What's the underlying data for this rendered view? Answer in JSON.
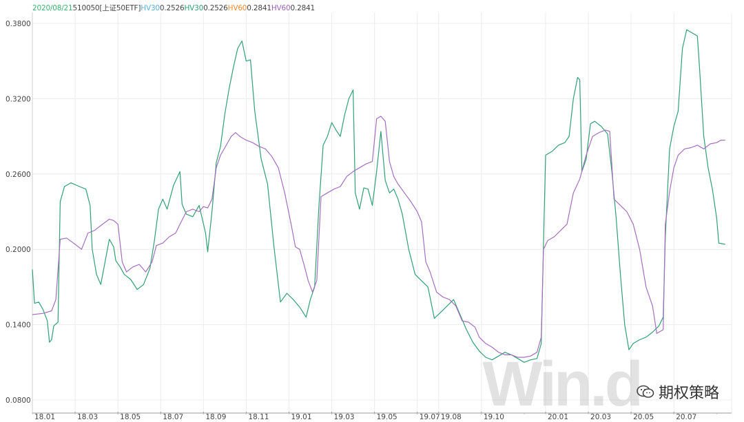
{
  "legend": {
    "date": "2020/08/21",
    "code": "510050",
    "name": "[上证50ETF]",
    "items": [
      {
        "label": "HV30",
        "value": "0.2526",
        "color": "#5bb0e0"
      },
      {
        "label": "HV30",
        "value": "0.2526",
        "color": "#2fa074"
      },
      {
        "label": "HV60",
        "value": "0.2841",
        "color": "#f08a30"
      },
      {
        "label": "HV60",
        "value": "0.2841",
        "color": "#9a62b8"
      }
    ],
    "date_color": "#3cb371",
    "text_color": "#444444"
  },
  "watermark": "Win.d",
  "wechat_label": "期权策略",
  "chart_data": {
    "type": "line",
    "ylim": [
      0.08,
      0.38
    ],
    "yticks": [
      "0.0800",
      "0.1400",
      "0.2000",
      "0.2600",
      "0.3200",
      "0.3800"
    ],
    "ytick_values": [
      0.08,
      0.14,
      0.2,
      0.26,
      0.32,
      0.38
    ],
    "xlim": [
      0,
      32.7
    ],
    "xticks": [
      {
        "label": "18.01",
        "x": 0
      },
      {
        "label": "18.03",
        "x": 2
      },
      {
        "label": "18.05",
        "x": 4
      },
      {
        "label": "18.07",
        "x": 6
      },
      {
        "label": "18.09",
        "x": 8
      },
      {
        "label": "18.11",
        "x": 10
      },
      {
        "label": "19.01",
        "x": 12
      },
      {
        "label": "19.03",
        "x": 14
      },
      {
        "label": "19.05",
        "x": 16
      },
      {
        "label": "19.07",
        "x": 18
      },
      {
        "label": "19.08",
        "x": 19
      },
      {
        "label": "19.10",
        "x": 21
      },
      {
        "label": "20.01",
        "x": 24
      },
      {
        "label": "20.03",
        "x": 26
      },
      {
        "label": "20.05",
        "x": 28
      },
      {
        "label": "20.07",
        "x": 30
      }
    ],
    "grid": true,
    "series": [
      {
        "name": "HV30",
        "color": "#2fa074",
        "points": [
          [
            0.0,
            0.184
          ],
          [
            0.1,
            0.157
          ],
          [
            0.3,
            0.158
          ],
          [
            0.5,
            0.152
          ],
          [
            0.7,
            0.143
          ],
          [
            0.8,
            0.126
          ],
          [
            0.9,
            0.128
          ],
          [
            1.0,
            0.139
          ],
          [
            1.2,
            0.142
          ],
          [
            1.3,
            0.238
          ],
          [
            1.5,
            0.25
          ],
          [
            1.8,
            0.253
          ],
          [
            2.2,
            0.25
          ],
          [
            2.5,
            0.248
          ],
          [
            2.7,
            0.235
          ],
          [
            2.8,
            0.2
          ],
          [
            3.0,
            0.18
          ],
          [
            3.2,
            0.172
          ],
          [
            3.4,
            0.19
          ],
          [
            3.6,
            0.208
          ],
          [
            3.8,
            0.202
          ],
          [
            3.9,
            0.191
          ],
          [
            4.1,
            0.186
          ],
          [
            4.3,
            0.18
          ],
          [
            4.6,
            0.176
          ],
          [
            4.9,
            0.168
          ],
          [
            5.2,
            0.172
          ],
          [
            5.5,
            0.185
          ],
          [
            5.7,
            0.206
          ],
          [
            5.9,
            0.232
          ],
          [
            6.1,
            0.24
          ],
          [
            6.3,
            0.232
          ],
          [
            6.6,
            0.251
          ],
          [
            6.9,
            0.262
          ],
          [
            7.0,
            0.236
          ],
          [
            7.2,
            0.228
          ],
          [
            7.5,
            0.226
          ],
          [
            7.8,
            0.235
          ],
          [
            8.1,
            0.213
          ],
          [
            8.2,
            0.198
          ],
          [
            8.4,
            0.23
          ],
          [
            8.6,
            0.269
          ],
          [
            8.8,
            0.282
          ],
          [
            9.0,
            0.308
          ],
          [
            9.2,
            0.328
          ],
          [
            9.4,
            0.345
          ],
          [
            9.6,
            0.36
          ],
          [
            9.8,
            0.366
          ],
          [
            10.0,
            0.35
          ],
          [
            10.2,
            0.351
          ],
          [
            10.4,
            0.31
          ],
          [
            10.7,
            0.272
          ],
          [
            11.0,
            0.252
          ],
          [
            11.3,
            0.202
          ],
          [
            11.6,
            0.158
          ],
          [
            11.9,
            0.165
          ],
          [
            12.2,
            0.16
          ],
          [
            12.5,
            0.154
          ],
          [
            12.8,
            0.146
          ],
          [
            13.0,
            0.16
          ],
          [
            13.2,
            0.17
          ],
          [
            13.4,
            0.234
          ],
          [
            13.6,
            0.283
          ],
          [
            13.8,
            0.29
          ],
          [
            14.0,
            0.301
          ],
          [
            14.2,
            0.295
          ],
          [
            14.4,
            0.29
          ],
          [
            14.6,
            0.307
          ],
          [
            14.8,
            0.32
          ],
          [
            15.0,
            0.327
          ],
          [
            15.1,
            0.245
          ],
          [
            15.3,
            0.232
          ],
          [
            15.5,
            0.249
          ],
          [
            15.7,
            0.248
          ],
          [
            15.9,
            0.235
          ],
          [
            16.1,
            0.262
          ],
          [
            16.3,
            0.294
          ],
          [
            16.5,
            0.255
          ],
          [
            16.7,
            0.245
          ],
          [
            16.9,
            0.248
          ],
          [
            17.1,
            0.24
          ],
          [
            17.3,
            0.228
          ],
          [
            17.6,
            0.2
          ],
          [
            17.9,
            0.18
          ],
          [
            18.2,
            0.175
          ],
          [
            18.5,
            0.17
          ],
          [
            18.8,
            0.145
          ],
          [
            19.1,
            0.15
          ],
          [
            19.4,
            0.155
          ],
          [
            19.7,
            0.16
          ],
          [
            20.0,
            0.148
          ],
          [
            20.3,
            0.136
          ],
          [
            20.6,
            0.126
          ],
          [
            20.9,
            0.119
          ],
          [
            21.2,
            0.114
          ],
          [
            21.5,
            0.112
          ],
          [
            21.8,
            0.115
          ],
          [
            22.1,
            0.118
          ],
          [
            22.4,
            0.116
          ],
          [
            22.7,
            0.113
          ],
          [
            23.0,
            0.11
          ],
          [
            23.3,
            0.112
          ],
          [
            23.6,
            0.113
          ],
          [
            23.8,
            0.125
          ],
          [
            23.9,
            0.203
          ],
          [
            24.0,
            0.275
          ],
          [
            24.3,
            0.278
          ],
          [
            24.6,
            0.283
          ],
          [
            24.9,
            0.285
          ],
          [
            25.1,
            0.29
          ],
          [
            25.3,
            0.32
          ],
          [
            25.5,
            0.337
          ],
          [
            25.6,
            0.335
          ],
          [
            25.7,
            0.262
          ],
          [
            25.9,
            0.272
          ],
          [
            26.1,
            0.3
          ],
          [
            26.3,
            0.302
          ],
          [
            26.6,
            0.298
          ],
          [
            26.9,
            0.292
          ],
          [
            27.1,
            0.262
          ],
          [
            27.3,
            0.225
          ],
          [
            27.5,
            0.18
          ],
          [
            27.7,
            0.14
          ],
          [
            27.9,
            0.12
          ],
          [
            28.1,
            0.125
          ],
          [
            28.4,
            0.128
          ],
          [
            28.7,
            0.13
          ],
          [
            29.0,
            0.134
          ],
          [
            29.3,
            0.139
          ],
          [
            29.5,
            0.146
          ],
          [
            29.6,
            0.21
          ],
          [
            29.8,
            0.28
          ],
          [
            30.0,
            0.298
          ],
          [
            30.2,
            0.31
          ],
          [
            30.4,
            0.36
          ],
          [
            30.6,
            0.375
          ],
          [
            30.9,
            0.372
          ],
          [
            31.1,
            0.37
          ],
          [
            31.2,
            0.345
          ],
          [
            31.4,
            0.29
          ],
          [
            31.6,
            0.265
          ],
          [
            31.8,
            0.248
          ],
          [
            32.0,
            0.225
          ],
          [
            32.1,
            0.205
          ],
          [
            32.4,
            0.204
          ]
        ]
      },
      {
        "name": "HV60",
        "color": "#a36fbb",
        "points": [
          [
            0.0,
            0.148
          ],
          [
            0.5,
            0.149
          ],
          [
            0.9,
            0.151
          ],
          [
            1.1,
            0.16
          ],
          [
            1.3,
            0.208
          ],
          [
            1.6,
            0.209
          ],
          [
            2.0,
            0.204
          ],
          [
            2.3,
            0.2
          ],
          [
            2.6,
            0.213
          ],
          [
            2.9,
            0.215
          ],
          [
            3.2,
            0.219
          ],
          [
            3.6,
            0.224
          ],
          [
            3.8,
            0.223
          ],
          [
            4.0,
            0.22
          ],
          [
            4.2,
            0.19
          ],
          [
            4.4,
            0.182
          ],
          [
            4.7,
            0.186
          ],
          [
            5.0,
            0.188
          ],
          [
            5.3,
            0.182
          ],
          [
            5.6,
            0.19
          ],
          [
            5.8,
            0.203
          ],
          [
            6.1,
            0.205
          ],
          [
            6.4,
            0.21
          ],
          [
            6.7,
            0.213
          ],
          [
            6.9,
            0.22
          ],
          [
            7.2,
            0.23
          ],
          [
            7.5,
            0.232
          ],
          [
            7.8,
            0.23
          ],
          [
            8.0,
            0.234
          ],
          [
            8.2,
            0.233
          ],
          [
            8.4,
            0.24
          ],
          [
            8.6,
            0.265
          ],
          [
            8.8,
            0.275
          ],
          [
            9.0,
            0.281
          ],
          [
            9.3,
            0.29
          ],
          [
            9.5,
            0.293
          ],
          [
            9.7,
            0.29
          ],
          [
            10.0,
            0.287
          ],
          [
            10.3,
            0.285
          ],
          [
            10.6,
            0.282
          ],
          [
            10.9,
            0.28
          ],
          [
            11.2,
            0.274
          ],
          [
            11.5,
            0.265
          ],
          [
            11.8,
            0.245
          ],
          [
            12.1,
            0.22
          ],
          [
            12.3,
            0.202
          ],
          [
            12.5,
            0.2
          ],
          [
            12.7,
            0.188
          ],
          [
            12.9,
            0.175
          ],
          [
            13.1,
            0.166
          ],
          [
            13.3,
            0.175
          ],
          [
            13.5,
            0.242
          ],
          [
            13.8,
            0.245
          ],
          [
            14.1,
            0.248
          ],
          [
            14.4,
            0.25
          ],
          [
            14.7,
            0.258
          ],
          [
            15.0,
            0.262
          ],
          [
            15.3,
            0.265
          ],
          [
            15.6,
            0.268
          ],
          [
            15.9,
            0.27
          ],
          [
            16.1,
            0.304
          ],
          [
            16.3,
            0.306
          ],
          [
            16.5,
            0.302
          ],
          [
            16.7,
            0.27
          ],
          [
            16.9,
            0.258
          ],
          [
            17.1,
            0.252
          ],
          [
            17.4,
            0.245
          ],
          [
            17.7,
            0.238
          ],
          [
            18.0,
            0.23
          ],
          [
            18.2,
            0.222
          ],
          [
            18.4,
            0.19
          ],
          [
            18.6,
            0.182
          ],
          [
            18.9,
            0.166
          ],
          [
            19.2,
            0.162
          ],
          [
            19.5,
            0.16
          ],
          [
            19.8,
            0.155
          ],
          [
            20.1,
            0.143
          ],
          [
            20.4,
            0.142
          ],
          [
            20.7,
            0.138
          ],
          [
            20.9,
            0.13
          ],
          [
            21.2,
            0.125
          ],
          [
            21.5,
            0.122
          ],
          [
            21.8,
            0.118
          ],
          [
            22.1,
            0.116
          ],
          [
            22.4,
            0.116
          ],
          [
            22.7,
            0.114
          ],
          [
            23.0,
            0.114
          ],
          [
            23.3,
            0.115
          ],
          [
            23.6,
            0.118
          ],
          [
            23.8,
            0.13
          ],
          [
            23.9,
            0.2
          ],
          [
            24.1,
            0.207
          ],
          [
            24.4,
            0.21
          ],
          [
            24.7,
            0.215
          ],
          [
            25.0,
            0.22
          ],
          [
            25.3,
            0.245
          ],
          [
            25.6,
            0.256
          ],
          [
            25.9,
            0.275
          ],
          [
            26.2,
            0.29
          ],
          [
            26.5,
            0.293
          ],
          [
            26.8,
            0.295
          ],
          [
            27.0,
            0.294
          ],
          [
            27.2,
            0.24
          ],
          [
            27.5,
            0.235
          ],
          [
            27.8,
            0.23
          ],
          [
            28.1,
            0.22
          ],
          [
            28.4,
            0.2
          ],
          [
            28.7,
            0.17
          ],
          [
            29.0,
            0.155
          ],
          [
            29.2,
            0.133
          ],
          [
            29.5,
            0.136
          ],
          [
            29.6,
            0.22
          ],
          [
            29.8,
            0.246
          ],
          [
            30.0,
            0.265
          ],
          [
            30.2,
            0.275
          ],
          [
            30.5,
            0.28
          ],
          [
            30.8,
            0.281
          ],
          [
            31.1,
            0.283
          ],
          [
            31.4,
            0.28
          ],
          [
            31.7,
            0.284
          ],
          [
            32.0,
            0.285
          ],
          [
            32.2,
            0.287
          ],
          [
            32.4,
            0.287
          ]
        ]
      }
    ]
  }
}
